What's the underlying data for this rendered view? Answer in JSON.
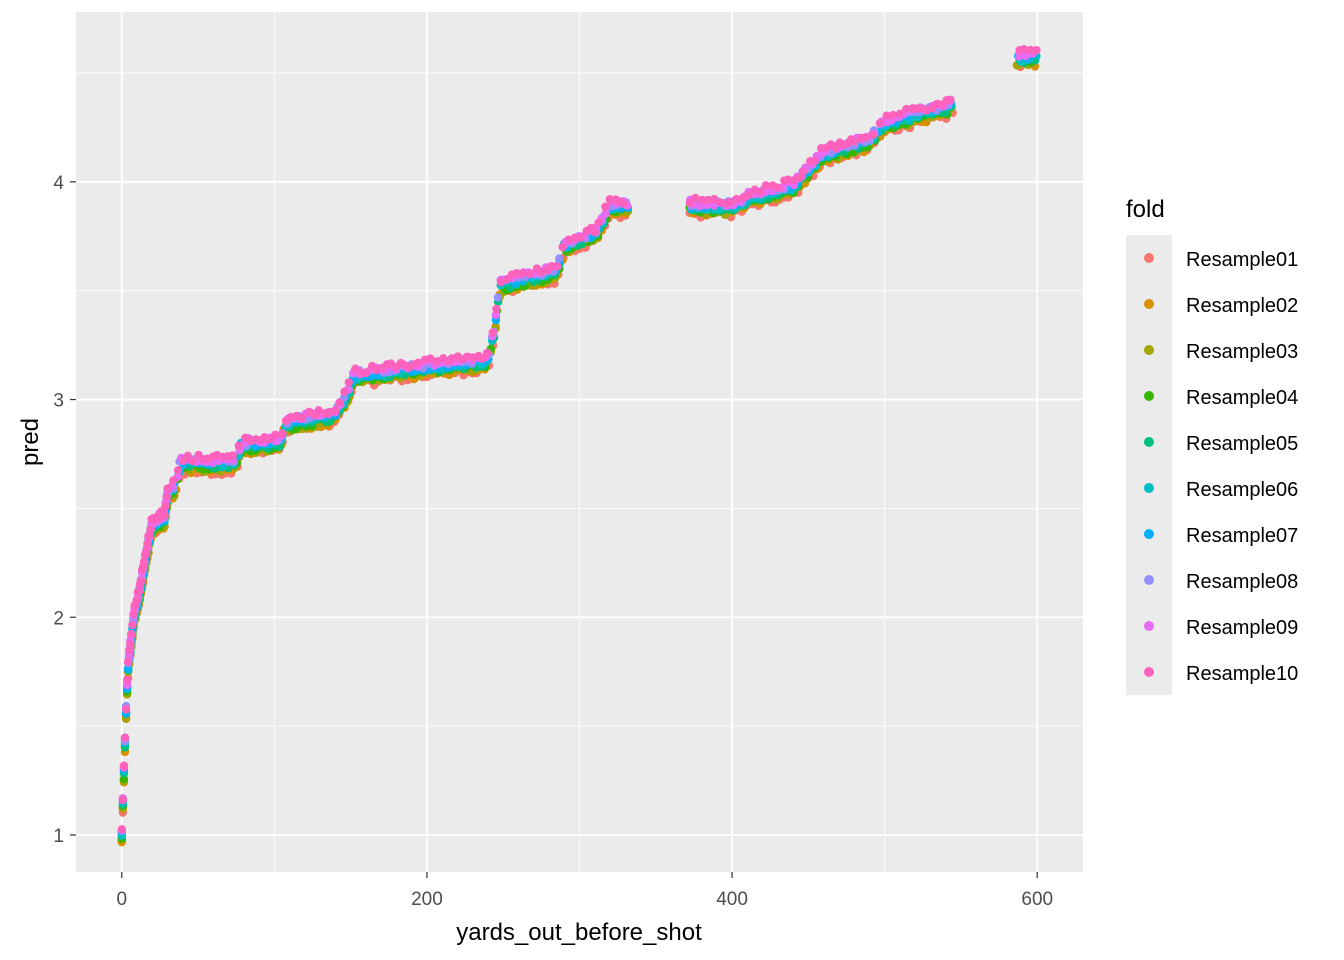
{
  "chart_data": {
    "type": "scatter",
    "title": "",
    "xlabel": "yards_out_before_shot",
    "ylabel": "pred",
    "xlim": [
      -30,
      630
    ],
    "ylim": [
      0.83,
      4.78
    ],
    "x_ticks": [
      0,
      200,
      400,
      600
    ],
    "y_ticks": [
      1,
      2,
      3,
      4
    ],
    "grid": true,
    "legend": {
      "title": "fold",
      "position": "right"
    },
    "curve": [
      [
        0,
        1.0
      ],
      [
        1,
        1.2
      ],
      [
        2,
        1.4
      ],
      [
        3,
        1.6
      ],
      [
        4,
        1.75
      ],
      [
        6,
        1.88
      ],
      [
        8,
        2.0
      ],
      [
        12,
        2.12
      ],
      [
        16,
        2.28
      ],
      [
        20,
        2.42
      ],
      [
        28,
        2.45
      ],
      [
        30,
        2.56
      ],
      [
        36,
        2.6
      ],
      [
        38,
        2.7
      ],
      [
        75,
        2.7
      ],
      [
        78,
        2.78
      ],
      [
        105,
        2.8
      ],
      [
        106,
        2.88
      ],
      [
        140,
        2.92
      ],
      [
        148,
        3.02
      ],
      [
        152,
        3.1
      ],
      [
        200,
        3.14
      ],
      [
        240,
        3.17
      ],
      [
        244,
        3.3
      ],
      [
        248,
        3.52
      ],
      [
        285,
        3.58
      ],
      [
        290,
        3.7
      ],
      [
        310,
        3.75
      ],
      [
        320,
        3.88
      ],
      [
        330,
        3.88
      ],
      [
        400,
        3.88
      ],
      [
        412,
        3.92
      ],
      [
        440,
        3.97
      ],
      [
        460,
        4.12
      ],
      [
        475,
        4.15
      ],
      [
        490,
        4.18
      ],
      [
        500,
        4.26
      ],
      [
        520,
        4.3
      ],
      [
        540,
        4.33
      ],
      [
        588,
        4.56
      ],
      [
        600,
        4.57
      ]
    ],
    "series": [
      {
        "name": "Resample01",
        "color": "#F8766D"
      },
      {
        "name": "Resample02",
        "color": "#D89000"
      },
      {
        "name": "Resample03",
        "color": "#A3A500"
      },
      {
        "name": "Resample04",
        "color": "#39B600"
      },
      {
        "name": "Resample05",
        "color": "#00BF7D"
      },
      {
        "name": "Resample06",
        "color": "#00BFC4"
      },
      {
        "name": "Resample07",
        "color": "#00B0F6"
      },
      {
        "name": "Resample08",
        "color": "#9590FF"
      },
      {
        "name": "Resample09",
        "color": "#E76BF3"
      },
      {
        "name": "Resample10",
        "color": "#FF62BC"
      }
    ]
  }
}
